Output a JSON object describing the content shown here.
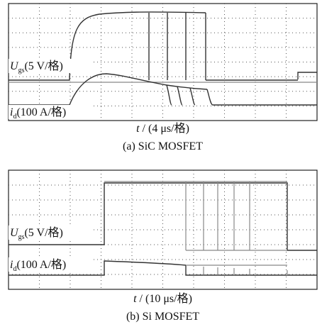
{
  "panels": [
    {
      "gate_label": {
        "symbol": "U",
        "subscript": "gs",
        "scale": "(5 V/格)"
      },
      "current_label": {
        "symbol": "i",
        "subscript": "d",
        "scale": "(100 A/格)"
      },
      "time_label": {
        "symbol": "t",
        "scale": "/ (4 μs/格)"
      },
      "caption": "(a) SiC MOSFET"
    },
    {
      "gate_label": {
        "symbol": "U",
        "subscript": "gs",
        "scale": "(5 V/格)"
      },
      "current_label": {
        "symbol": "i",
        "subscript": "d",
        "scale": "(100 A/格)"
      },
      "time_label": {
        "symbol": "t",
        "scale": "/ (10 μs/格)"
      },
      "caption": "(b) Si MOSFET"
    }
  ]
}
